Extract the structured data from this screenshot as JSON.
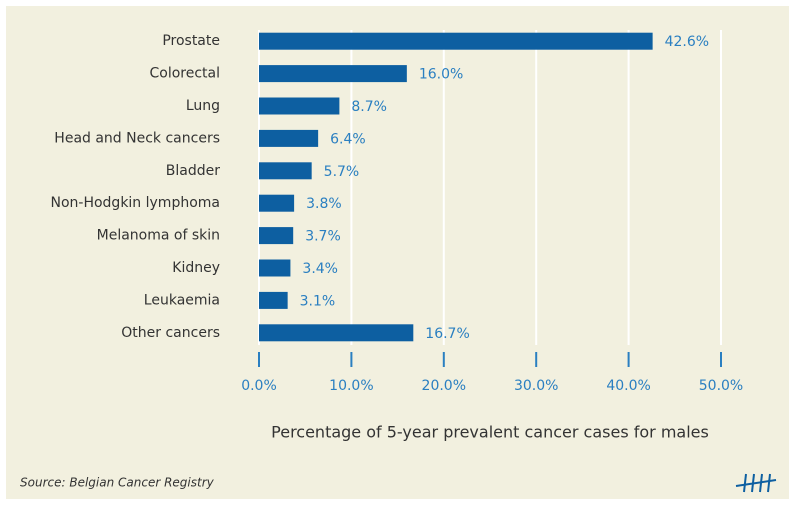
{
  "chart_data": {
    "type": "bar",
    "orientation": "horizontal",
    "categories": [
      "Prostate",
      "Colorectal",
      "Lung",
      "Head and Neck cancers",
      "Bladder",
      "Non-Hodgkin lymphoma",
      "Melanoma of skin",
      "Kidney",
      "Leukaemia",
      "Other cancers"
    ],
    "values": [
      42.6,
      16.0,
      8.7,
      6.4,
      5.7,
      3.8,
      3.7,
      3.4,
      3.1,
      16.7
    ],
    "value_labels": [
      "42.6%",
      "16.0%",
      "8.7%",
      "6.4%",
      "5.7%",
      "3.8%",
      "3.7%",
      "3.4%",
      "3.1%",
      "16.7%"
    ],
    "color": "#0d5fa1",
    "xlim": [
      0,
      50
    ],
    "xticks": [
      {
        "value": 0,
        "label": "0.0%"
      },
      {
        "value": 10,
        "label": "10.0%"
      },
      {
        "value": 20,
        "label": "20.0%"
      },
      {
        "value": 30,
        "label": "30.0%"
      },
      {
        "value": 40,
        "label": "40.0%"
      },
      {
        "value": 50,
        "label": "50.0%"
      }
    ],
    "grid": true,
    "xlabel": "Percentage of 5-year prevalent cancer cases for males",
    "source": "Source: Belgian Cancer Registry"
  }
}
